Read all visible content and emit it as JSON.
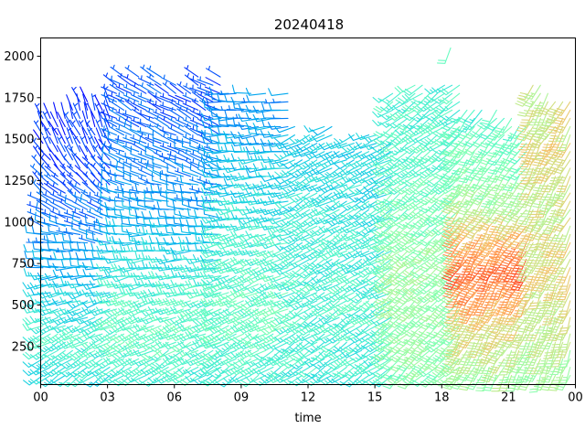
{
  "chart_data": {
    "type": "wind-barbs",
    "title": "20240418",
    "xlabel": "time",
    "ylabel": "",
    "x_ticks": [
      "00",
      "03",
      "06",
      "09",
      "12",
      "15",
      "18",
      "21",
      "00"
    ],
    "x_range_hours": [
      0,
      24
    ],
    "y_ticks": [
      250,
      500,
      750,
      1000,
      1250,
      1500,
      1750,
      2000
    ],
    "ylim": [
      20,
      2110
    ],
    "time_step_hours": 0.333,
    "height_step": 50,
    "colormap": "rainbow",
    "color_range_ms": [
      0,
      22
    ],
    "grid": false,
    "legend": "none",
    "segments": [
      {
        "t0": 0.0,
        "t1": 3.3,
        "top": 1700,
        "speed": [
          [
            "0",
            7
          ],
          [
            "300",
            9
          ],
          [
            "500",
            7
          ],
          [
            "900",
            4
          ],
          [
            "1200",
            2
          ],
          [
            "1600",
            1
          ]
        ],
        "dir": [
          [
            "0",
            230
          ],
          [
            "500",
            250
          ],
          [
            "1000",
            290
          ],
          [
            "1300",
            320
          ],
          [
            "1600",
            340
          ]
        ]
      },
      {
        "t0": 3.3,
        "t1": 8.0,
        "top": 1850,
        "speed": [
          [
            "0",
            8
          ],
          [
            "300",
            10
          ],
          [
            "600",
            9
          ],
          [
            "900",
            6
          ],
          [
            "1200",
            4
          ],
          [
            "1500",
            3
          ],
          [
            "1800",
            2
          ]
        ],
        "dir": [
          [
            "0",
            235
          ],
          [
            "500",
            250
          ],
          [
            "900",
            270
          ],
          [
            "1300",
            290
          ],
          [
            "1800",
            300
          ]
        ]
      },
      {
        "t0": 8.0,
        "t1": 11.3,
        "top": 1750,
        "speed": [
          [
            "0",
            8
          ],
          [
            "400",
            10
          ],
          [
            "800",
            9
          ],
          [
            "1200",
            7
          ],
          [
            "1500",
            5
          ],
          [
            "1750",
            4
          ]
        ],
        "dir": [
          [
            "0",
            235
          ],
          [
            "600",
            245
          ],
          [
            "1200",
            260
          ],
          [
            "1700",
            270
          ]
        ]
      },
      {
        "t0": 11.3,
        "t1": 15.7,
        "top": 1560,
        "speed": [
          [
            "0",
            8
          ],
          [
            "500",
            9
          ],
          [
            "1000",
            8
          ],
          [
            "1300",
            7
          ],
          [
            "1560",
            6
          ]
        ],
        "dir": [
          [
            "0",
            235
          ],
          [
            "800",
            240
          ],
          [
            "1500",
            245
          ]
        ]
      },
      {
        "t0": 15.7,
        "t1": 18.7,
        "top": 1800,
        "speed": [
          [
            "0",
            11
          ],
          [
            "400",
            12
          ],
          [
            "800",
            12
          ],
          [
            "1200",
            10
          ],
          [
            "1600",
            9
          ],
          [
            "1800",
            9
          ]
        ],
        "dir": [
          [
            "0",
            225
          ],
          [
            "900",
            230
          ],
          [
            "1800",
            235
          ]
        ]
      },
      {
        "t0": 18.7,
        "t1": 22.0,
        "top": 1650,
        "speed": [
          [
            "0",
            12
          ],
          [
            "400",
            15
          ],
          [
            "700",
            19
          ],
          [
            "900",
            17
          ],
          [
            "1200",
            12
          ],
          [
            "1500",
            10
          ],
          [
            "1650",
            9
          ]
        ],
        "dir": [
          [
            "0",
            205
          ],
          [
            "800",
            210
          ],
          [
            "1600",
            220
          ]
        ]
      },
      {
        "t0": 22.0,
        "t1": 24.0,
        "top": 1800,
        "speed": [
          [
            "0",
            12
          ],
          [
            "400",
            14
          ],
          [
            "800",
            15
          ],
          [
            "1200",
            14
          ],
          [
            "1500",
            15
          ],
          [
            "1800",
            14
          ]
        ],
        "dir": [
          [
            "0",
            200
          ],
          [
            "900",
            205
          ],
          [
            "1800",
            210
          ]
        ]
      }
    ],
    "isolated_barbs": [
      {
        "hour": 18.4,
        "height": 2050,
        "speed": 10,
        "dir": 200
      }
    ]
  }
}
